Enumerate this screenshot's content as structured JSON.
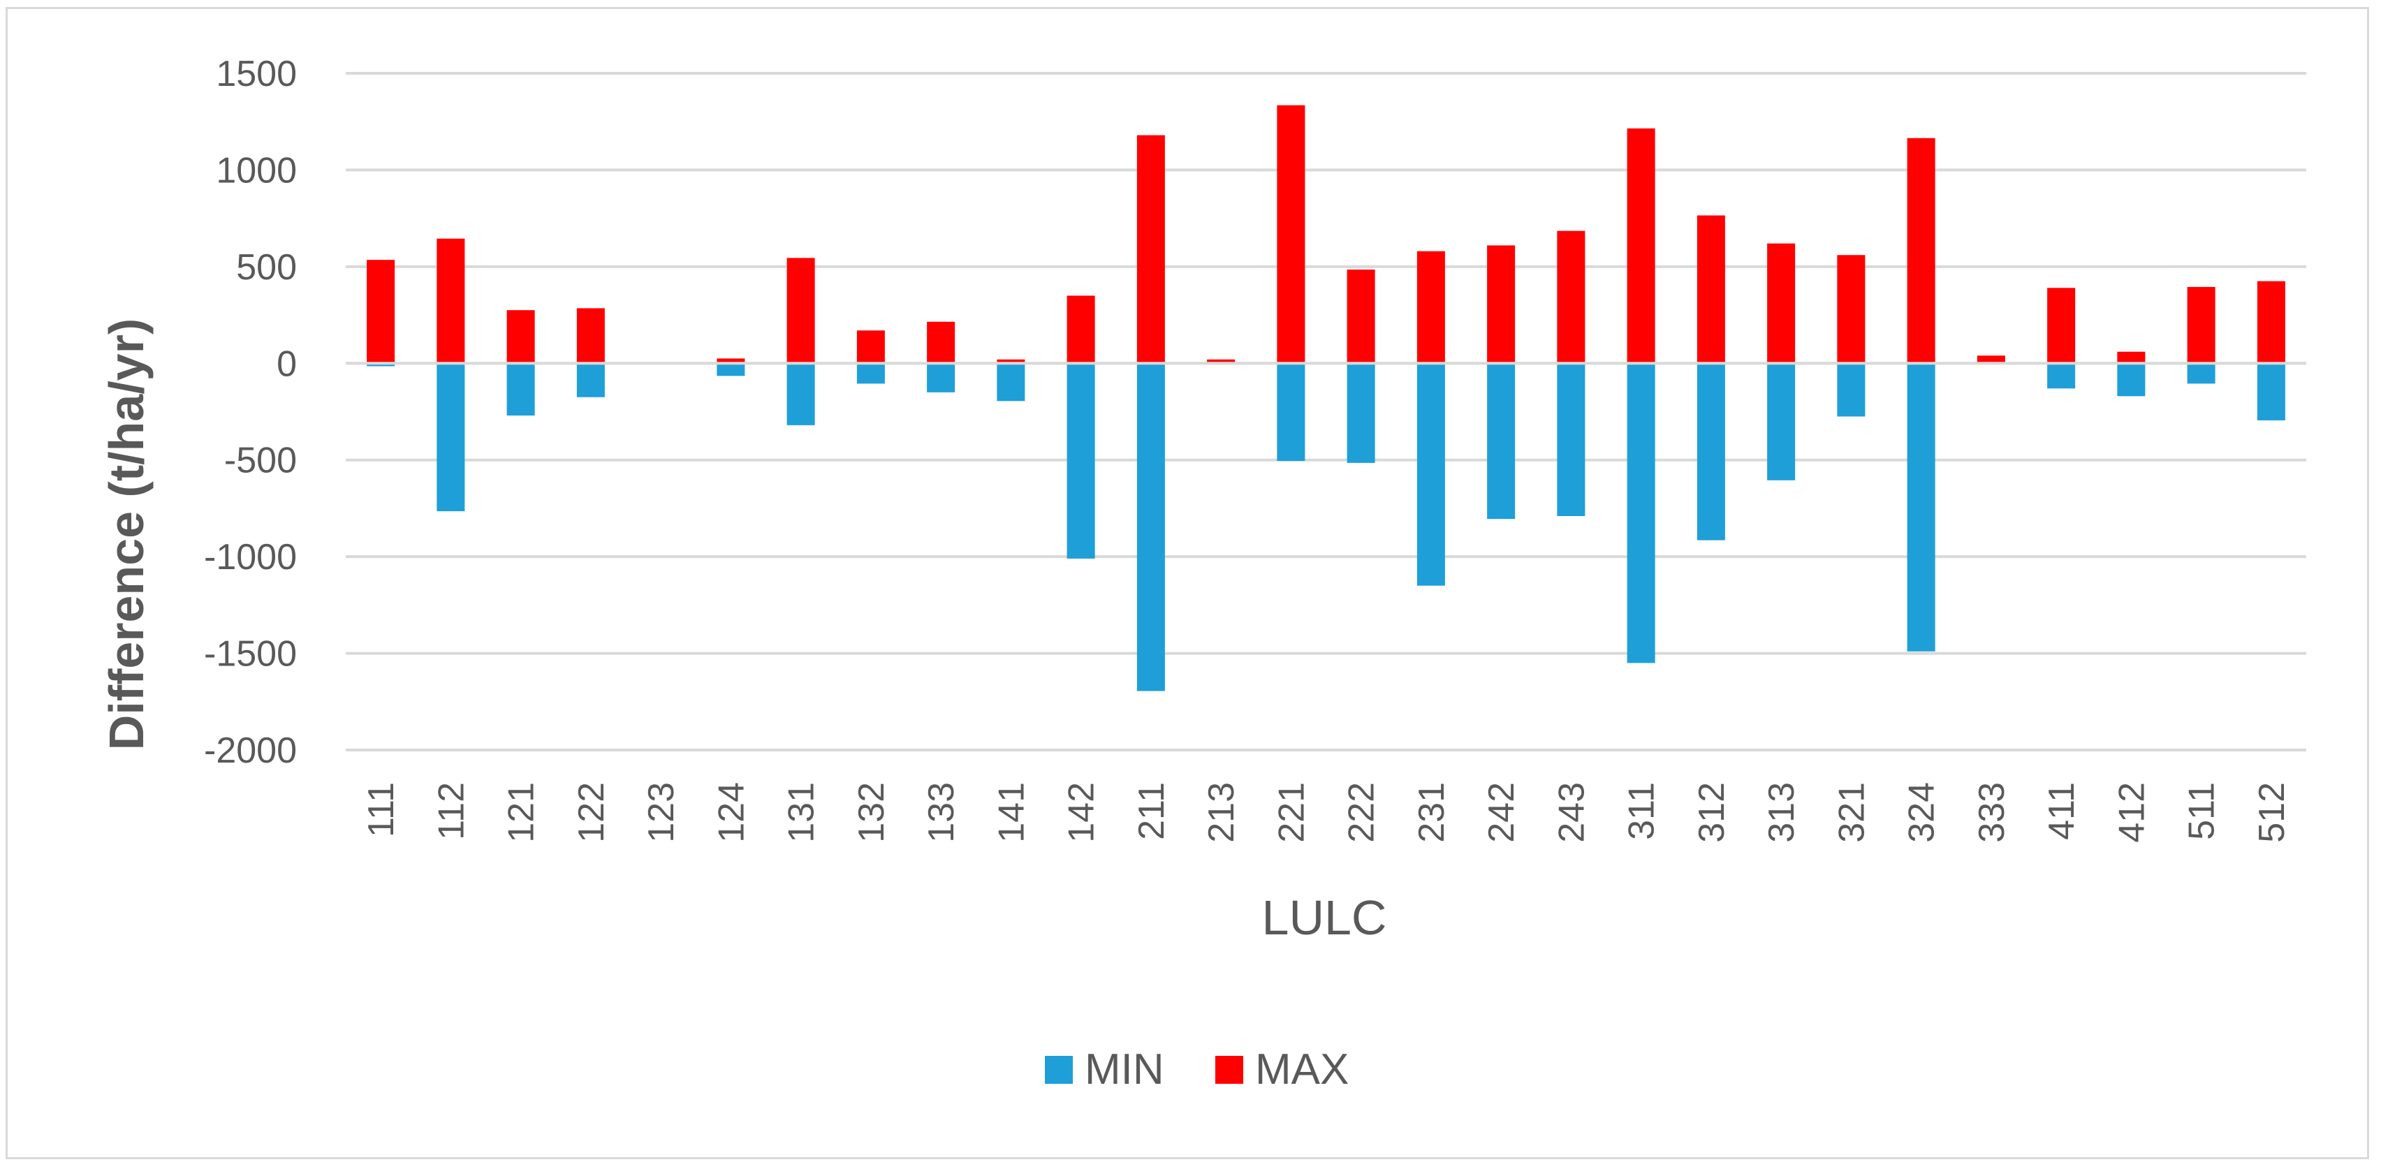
{
  "chart_data": {
    "type": "bar",
    "categories": [
      "111",
      "112",
      "121",
      "122",
      "123",
      "124",
      "131",
      "132",
      "133",
      "141",
      "142",
      "211",
      "213",
      "221",
      "222",
      "231",
      "242",
      "243",
      "311",
      "312",
      "313",
      "321",
      "324",
      "333",
      "411",
      "412",
      "511",
      "512"
    ],
    "series": [
      {
        "name": "MIN",
        "color": "#1e9fd8",
        "values": [
          -15,
          -765,
          -270,
          -175,
          0,
          -65,
          -320,
          -105,
          -150,
          -195,
          -1010,
          -1695,
          0,
          -505,
          -515,
          -1150,
          -805,
          -790,
          -1550,
          -915,
          -605,
          -275,
          -1490,
          0,
          -130,
          -170,
          -105,
          -295
        ]
      },
      {
        "name": "MAX",
        "color": "#ff0000",
        "values": [
          535,
          645,
          275,
          285,
          0,
          25,
          545,
          170,
          215,
          20,
          350,
          1180,
          20,
          1335,
          485,
          580,
          610,
          685,
          1215,
          765,
          620,
          560,
          1165,
          40,
          390,
          60,
          395,
          425
        ]
      }
    ],
    "xlabel": "LULC",
    "ylabel": "Difference (t/ha/yr)",
    "ylim": [
      -2000,
      1500
    ],
    "yticks": [
      1500,
      1000,
      500,
      0,
      -500,
      -1000,
      -1500,
      -2000
    ],
    "grid": true,
    "legend_position": "bottom"
  }
}
